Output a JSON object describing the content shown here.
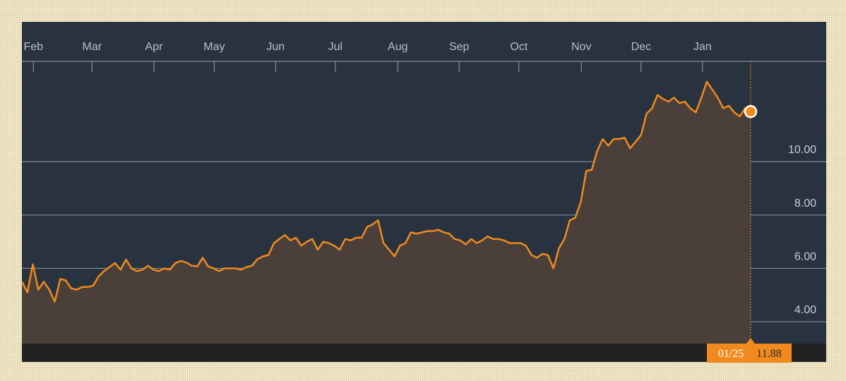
{
  "chart_data": {
    "type": "line",
    "values": [
      5.5,
      5.1,
      6.15,
      5.2,
      5.5,
      5.2,
      4.75,
      5.6,
      5.55,
      5.25,
      5.2,
      5.3,
      5.3,
      5.35,
      5.7,
      5.9,
      6.05,
      6.2,
      5.95,
      6.33,
      6.0,
      5.9,
      5.95,
      6.1,
      5.95,
      5.9,
      6.0,
      5.95,
      6.2,
      6.28,
      6.22,
      6.1,
      6.08,
      6.4,
      6.08,
      6.0,
      5.9,
      6.0,
      6.0,
      6.0,
      5.95,
      6.05,
      6.1,
      6.35,
      6.45,
      6.5,
      6.95,
      7.1,
      7.25,
      7.05,
      7.15,
      6.85,
      7.0,
      7.1,
      6.7,
      7.0,
      6.95,
      6.85,
      6.7,
      7.1,
      7.05,
      7.15,
      7.15,
      7.55,
      7.65,
      7.8,
      6.95,
      6.7,
      6.45,
      6.85,
      6.95,
      7.35,
      7.3,
      7.35,
      7.4,
      7.4,
      7.45,
      7.35,
      7.3,
      7.1,
      7.05,
      6.9,
      7.1,
      6.95,
      7.05,
      7.2,
      7.1,
      7.1,
      7.05,
      6.95,
      6.95,
      6.95,
      6.85,
      6.5,
      6.4,
      6.55,
      6.5,
      6.0,
      6.75,
      7.1,
      7.8,
      7.9,
      8.5,
      9.65,
      9.7,
      10.4,
      10.85,
      10.6,
      10.85,
      10.85,
      10.9,
      10.5,
      10.75,
      11.0,
      11.8,
      12.0,
      12.5,
      12.35,
      12.25,
      12.4,
      12.2,
      12.25,
      12.0,
      11.85,
      12.4,
      13.0,
      12.7,
      12.4,
      12.0,
      12.1,
      11.85,
      11.7,
      12.0,
      11.88
    ],
    "color": "#f08a1e",
    "xlim": [
      0,
      133
    ],
    "xticks": [
      {
        "value": 2.1,
        "label": "Feb"
      },
      {
        "value": 12.8,
        "label": "Mar"
      },
      {
        "value": 24.1,
        "label": "Apr"
      },
      {
        "value": 35.1,
        "label": "May"
      },
      {
        "value": 46.3,
        "label": "Jun"
      },
      {
        "value": 57.2,
        "label": "Jul"
      },
      {
        "value": 68.6,
        "label": "Aug"
      },
      {
        "value": 79.8,
        "label": "Sep"
      },
      {
        "value": 90.7,
        "label": "Oct"
      },
      {
        "value": 102.1,
        "label": "Nov"
      },
      {
        "value": 113.0,
        "label": "Dec"
      },
      {
        "value": 124.2,
        "label": "Jan"
      }
    ],
    "ylim": [
      3.18,
      13.76
    ],
    "yticks": [
      {
        "value": 4,
        "label": "4.00"
      },
      {
        "value": 6,
        "label": "6.00"
      },
      {
        "value": 8,
        "label": "8.00"
      },
      {
        "value": 10,
        "label": "10.00"
      }
    ],
    "grid": true,
    "current": {
      "date": "01/25",
      "value": 11.88
    }
  }
}
